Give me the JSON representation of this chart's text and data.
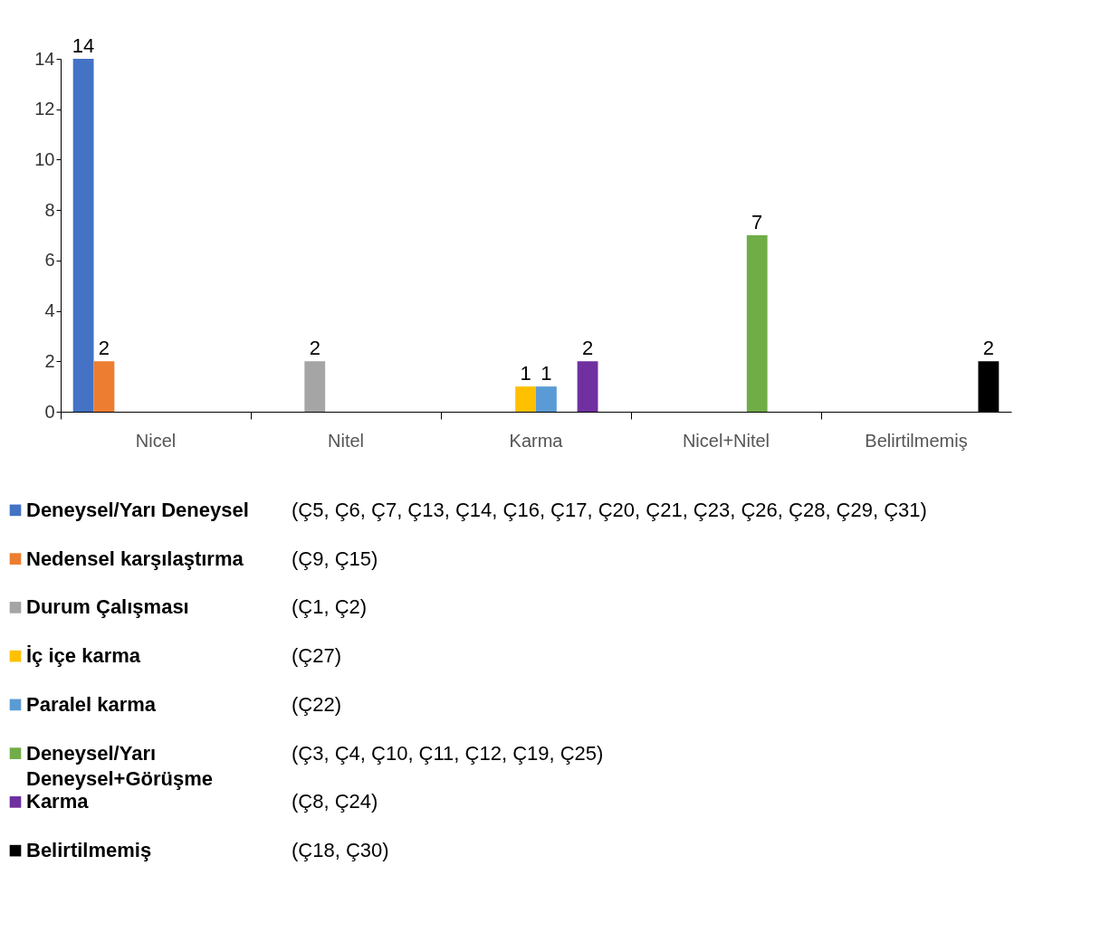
{
  "chart_data": {
    "type": "bar",
    "categories": [
      "Nicel",
      "Nitel",
      "Karma",
      "Nicel+Nitel",
      "Belirtilmemiş"
    ],
    "series": [
      {
        "name": "Deneysel/Yarı Deneysel",
        "color": "#4472c4",
        "values": [
          14,
          null,
          null,
          null,
          null
        ]
      },
      {
        "name": "Nedensel karşılaştırma",
        "color": "#ed7d31",
        "values": [
          2,
          null,
          null,
          null,
          null
        ]
      },
      {
        "name": "Durum Çalışması",
        "color": "#a5a5a5",
        "values": [
          null,
          2,
          null,
          null,
          null
        ]
      },
      {
        "name": "İç içe karma",
        "color": "#ffc000",
        "values": [
          null,
          null,
          1,
          null,
          null
        ]
      },
      {
        "name": "Paralel karma",
        "color": "#5b9bd5",
        "values": [
          null,
          null,
          1,
          null,
          null
        ]
      },
      {
        "name": "Deneysel/Yarı Deneysel+Görüşme",
        "color": "#70ad47",
        "values": [
          null,
          null,
          null,
          7,
          null
        ]
      },
      {
        "name": "Karma",
        "color": "#7030a0",
        "values": [
          null,
          null,
          2,
          null,
          null
        ]
      },
      {
        "name": "Belirtilmemiş",
        "color": "#000000",
        "values": [
          null,
          null,
          null,
          null,
          2
        ]
      }
    ],
    "annotations": [
      "(Ç5, Ç6, Ç7, Ç13, Ç14, Ç16, Ç17, Ç20, Ç21, Ç23, Ç26, Ç28, Ç29, Ç31)",
      "(Ç9, Ç15)",
      "(Ç1, Ç2)",
      "(Ç27)",
      "(Ç22)",
      "(Ç3, Ç4, Ç10, Ç11, Ç12, Ç19, Ç25)",
      "(Ç8, Ç24)",
      "(Ç18, Ç30)"
    ],
    "ylim": [
      0,
      14
    ],
    "yticks": [
      0,
      2,
      4,
      6,
      8,
      10,
      12,
      14
    ],
    "grid": false,
    "legend": "bottom",
    "data_labels": true
  }
}
